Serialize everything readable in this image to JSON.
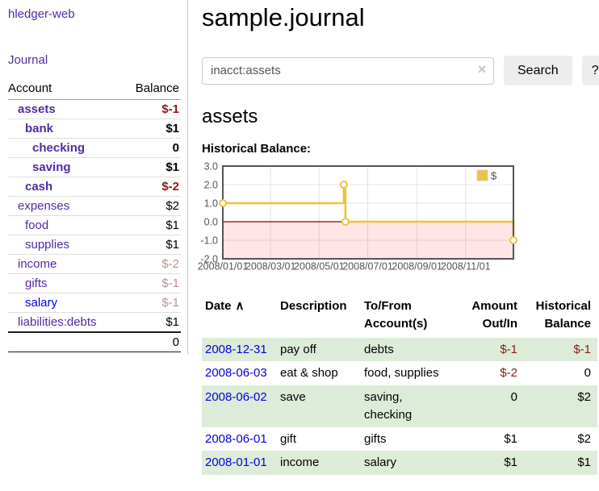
{
  "app": {
    "title": "hledger-web"
  },
  "sidebar": {
    "nav_journal_label": "Journal",
    "accounts_table": {
      "headers": [
        "Account",
        "Balance"
      ],
      "rows": [
        {
          "name": "assets",
          "depth": 0,
          "bold": true,
          "link_color": "purple",
          "balance": "$-1",
          "balance_class": "neg-strong"
        },
        {
          "name": "bank",
          "depth": 1,
          "bold": true,
          "link_color": "purple",
          "balance": "$1",
          "balance_class": "pos-strong"
        },
        {
          "name": "checking",
          "depth": 2,
          "bold": true,
          "link_color": "purple",
          "balance": "0",
          "balance_class": "pos-strong"
        },
        {
          "name": "saving",
          "depth": 2,
          "bold": true,
          "link_color": "purple",
          "balance": "$1",
          "balance_class": "pos-strong"
        },
        {
          "name": "cash",
          "depth": 1,
          "bold": true,
          "link_color": "purple",
          "balance": "$-2",
          "balance_class": "neg-strong"
        },
        {
          "name": "expenses",
          "depth": 0,
          "bold": false,
          "link_color": "purple",
          "balance": "$2",
          "balance_class": "plain"
        },
        {
          "name": "food",
          "depth": 1,
          "bold": false,
          "link_color": "purple",
          "balance": "$1",
          "balance_class": "plain"
        },
        {
          "name": "supplies",
          "depth": 1,
          "bold": false,
          "link_color": "purple",
          "balance": "$1",
          "balance_class": "plain"
        },
        {
          "name": "income",
          "depth": 0,
          "bold": false,
          "link_color": "purple",
          "balance": "$-2",
          "balance_class": "neg-faint"
        },
        {
          "name": "gifts",
          "depth": 1,
          "bold": false,
          "link_color": "purple",
          "balance": "$-1",
          "balance_class": "neg-faint"
        },
        {
          "name": "salary",
          "depth": 1,
          "bold": false,
          "link_color": "blue",
          "balance": "$-1",
          "balance_class": "neg-faint"
        },
        {
          "name": "liabilities:debts",
          "depth": 0,
          "bold": false,
          "link_color": "purple",
          "balance": "$1",
          "balance_class": "plain"
        }
      ],
      "total": "0"
    }
  },
  "header": {
    "title": "sample.journal"
  },
  "search": {
    "value": "inacct:assets",
    "clear_icon": "✕",
    "button_label": "Search",
    "help_label": "?"
  },
  "main": {
    "account_heading": "assets"
  },
  "chart_data": {
    "type": "line",
    "title": "Historical Balance:",
    "x_range": [
      "2008-01-01",
      "2008-12-31"
    ],
    "ylim": [
      -2,
      3
    ],
    "y_ticks": [
      {
        "value": 3,
        "label": "3.0"
      },
      {
        "value": 2,
        "label": "2.0"
      },
      {
        "value": 1,
        "label": "1.0"
      },
      {
        "value": 0,
        "label": "0.0"
      },
      {
        "value": -1,
        "label": "-1.0"
      },
      {
        "value": -2,
        "label": "-2.0"
      }
    ],
    "x_ticks": [
      {
        "date": "2008-01-01",
        "label": "2008/01/01"
      },
      {
        "date": "2008-03-01",
        "label": "2008/03/01"
      },
      {
        "date": "2008-05-01",
        "label": "2008/05/01"
      },
      {
        "date": "2008-07-01",
        "label": "2008/07/01"
      },
      {
        "date": "2008-09-01",
        "label": "2008/09/01"
      },
      {
        "date": "2008-11-01",
        "label": "2008/11/01"
      }
    ],
    "series": [
      {
        "name": "$",
        "color": "#edc240",
        "step": true,
        "points": [
          {
            "date": "2008-01-01",
            "value": 1
          },
          {
            "date": "2008-06-01",
            "value": 2
          },
          {
            "date": "2008-06-03",
            "value": 0
          },
          {
            "date": "2008-12-31",
            "value": -1
          }
        ]
      }
    ],
    "grid": {
      "border_color": "#545454",
      "grid_color": "#e3e3e3",
      "zero_line_color": "#800000",
      "negative_fill": "rgba(255,0,0,0.10)",
      "tick_label_color": "#545454"
    },
    "legend": {
      "position": "top-right",
      "label": "$"
    }
  },
  "transactions": {
    "sort_icon": "∧",
    "headers": [
      "Date",
      "Description",
      "To/From Account(s)",
      "Amount Out/In",
      "Historical Balance"
    ],
    "rows": [
      {
        "date": "2008-12-31",
        "description": "pay off",
        "accounts": "debts",
        "amount": "$-1",
        "amount_neg": true,
        "balance": "$-1",
        "balance_neg": true
      },
      {
        "date": "2008-06-03",
        "description": "eat & shop",
        "accounts": "food, supplies",
        "amount": "$-2",
        "amount_neg": true,
        "balance": "0",
        "balance_neg": false
      },
      {
        "date": "2008-06-02",
        "description": "save",
        "accounts": "saving, checking",
        "amount": "0",
        "amount_neg": false,
        "balance": "$2",
        "balance_neg": false
      },
      {
        "date": "2008-06-01",
        "description": "gift",
        "accounts": "gifts",
        "amount": "$1",
        "amount_neg": false,
        "balance": "$2",
        "balance_neg": false
      },
      {
        "date": "2008-01-01",
        "description": "income",
        "accounts": "salary",
        "amount": "$1",
        "amount_neg": false,
        "balance": "$1",
        "balance_neg": false
      }
    ]
  }
}
